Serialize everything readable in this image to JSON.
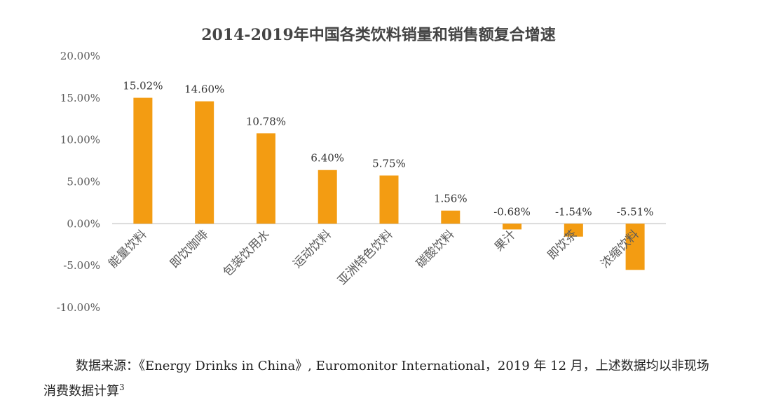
{
  "chart_data": {
    "type": "bar",
    "title": "2014-2019年中国各类饮料销量和销售额复合增速",
    "categories": [
      "能量饮料",
      "即饮咖啡",
      "包装饮用水",
      "运动饮料",
      "亚洲特色饮料",
      "碳酸饮料",
      "果汁",
      "即饮茶",
      "浓缩饮料"
    ],
    "values": [
      15.02,
      14.6,
      10.78,
      6.4,
      5.75,
      1.56,
      -0.68,
      -1.54,
      -5.51
    ],
    "data_labels": [
      "15.02%",
      "14.60%",
      "10.78%",
      "6.40%",
      "5.75%",
      "1.56%",
      "-0.68%",
      "-1.54%",
      "-5.51%"
    ],
    "y_ticks": [
      20,
      15,
      10,
      5,
      0,
      -5,
      -10
    ],
    "y_tick_labels": [
      "20.00%",
      "15.00%",
      "10.00%",
      "5.00%",
      "0.00%",
      "-5.00%",
      "-10.00%"
    ],
    "ylim": [
      -10,
      20
    ],
    "grid": false,
    "legend": "none",
    "bar_color": "#F39C12"
  },
  "source": {
    "text": "数据来源：《Energy Drinks in China》, Euromonitor International，2019 年 12 月，上述数据均以非现场消费数据计算",
    "footnote": "3"
  }
}
